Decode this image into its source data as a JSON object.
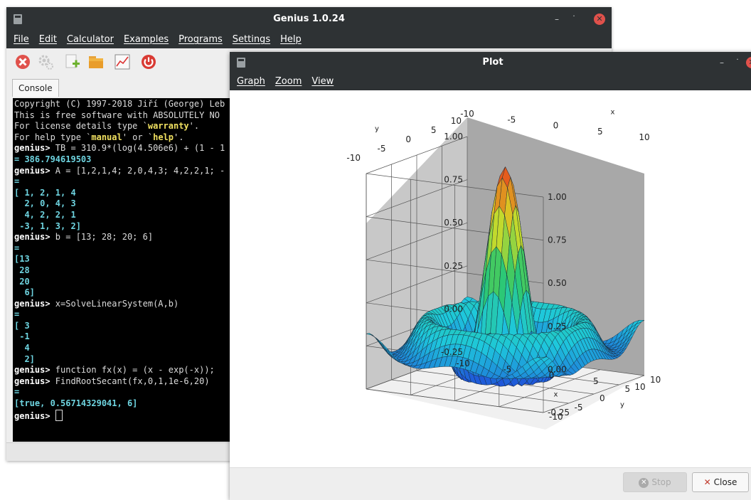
{
  "main_window": {
    "title": "Genius 1.0.24",
    "menu": [
      "File",
      "Edit",
      "Calculator",
      "Examples",
      "Programs",
      "Settings",
      "Help"
    ],
    "toolbar_icons": [
      "stop-icon",
      "gear-icon",
      "new-file-icon",
      "open-folder-icon",
      "plot-icon",
      "quit-icon"
    ],
    "tab": "Console",
    "console_lines": [
      [
        {
          "t": "Copyright (C) 1997-2018 Jiří (George) Leb",
          "c": ""
        }
      ],
      [
        {
          "t": "This is free software with ABSOLUTELY NO ",
          "c": ""
        }
      ],
      [
        {
          "t": "For license details type `",
          "c": ""
        },
        {
          "t": "warranty",
          "c": "cyellow"
        },
        {
          "t": "'.",
          "c": ""
        }
      ],
      [
        {
          "t": "For help type `",
          "c": ""
        },
        {
          "t": "manual",
          "c": "cyellow"
        },
        {
          "t": "' or `",
          "c": ""
        },
        {
          "t": "help",
          "c": "cyellow"
        },
        {
          "t": "'.",
          "c": ""
        }
      ],
      [
        {
          "t": "",
          "c": ""
        }
      ],
      [
        {
          "t": "genius>",
          "c": "cprompt"
        },
        {
          "t": " TB = 310.9*(log(4.506e6) + (1 - 1",
          "c": ""
        }
      ],
      [
        {
          "t": "= 386.794619503",
          "c": "cresult"
        }
      ],
      [
        {
          "t": "genius>",
          "c": "cprompt"
        },
        {
          "t": " A = [1,2,1,4; 2,0,4,3; 4,2,2,1; -",
          "c": ""
        }
      ],
      [
        {
          "t": "=",
          "c": "cresult"
        }
      ],
      [
        {
          "t": "[ 1, 2, 1, 4",
          "c": "cresult"
        }
      ],
      [
        {
          "t": "  2, 0, 4, 3",
          "c": "cresult"
        }
      ],
      [
        {
          "t": "  4, 2, 2, 1",
          "c": "cresult"
        }
      ],
      [
        {
          "t": " -3, 1, 3, 2]",
          "c": "cresult"
        }
      ],
      [
        {
          "t": "genius>",
          "c": "cprompt"
        },
        {
          "t": " b = [13; 28; 20; 6]",
          "c": ""
        }
      ],
      [
        {
          "t": "=",
          "c": "cresult"
        }
      ],
      [
        {
          "t": "[13",
          "c": "cresult"
        }
      ],
      [
        {
          "t": " 28",
          "c": "cresult"
        }
      ],
      [
        {
          "t": " 20",
          "c": "cresult"
        }
      ],
      [
        {
          "t": "  6]",
          "c": "cresult"
        }
      ],
      [
        {
          "t": "genius>",
          "c": "cprompt"
        },
        {
          "t": " x=SolveLinearSystem(A,b)",
          "c": ""
        }
      ],
      [
        {
          "t": "=",
          "c": "cresult"
        }
      ],
      [
        {
          "t": "[ 3",
          "c": "cresult"
        }
      ],
      [
        {
          "t": " -1",
          "c": "cresult"
        }
      ],
      [
        {
          "t": "  4",
          "c": "cresult"
        }
      ],
      [
        {
          "t": "  2]",
          "c": "cresult"
        }
      ],
      [
        {
          "t": "genius>",
          "c": "cprompt"
        },
        {
          "t": " function fx(x) = (x - exp(-x));",
          "c": ""
        }
      ],
      [
        {
          "t": "genius>",
          "c": "cprompt"
        },
        {
          "t": " FindRootSecant(fx,0,1,1e-6,20)",
          "c": ""
        }
      ],
      [
        {
          "t": "=",
          "c": "cresult"
        }
      ],
      [
        {
          "t": "[true, 0.56714329041, 6]",
          "c": "cresult"
        }
      ],
      [
        {
          "t": "genius>",
          "c": "cprompt"
        },
        {
          "t": " ",
          "c": ""
        }
      ]
    ]
  },
  "plot_window": {
    "title": "Plot",
    "menu": [
      "Graph",
      "Zoom",
      "View"
    ],
    "axis_name_x": "x",
    "axis_name_y": "y",
    "buttons": {
      "stop": "Stop",
      "close": "Close"
    }
  },
  "chart_data": {
    "type": "surface",
    "x_range": [
      -10,
      10
    ],
    "y_range": [
      -10,
      10
    ],
    "z_range": [
      -0.25,
      1.0
    ],
    "z_ticks": [
      "1.00",
      "0.75",
      "0.50",
      "0.25",
      "0.00",
      "-0.25"
    ],
    "x_ticks": [
      "-10",
      "-5",
      "0",
      "5",
      "10"
    ],
    "y_ticks": [
      "10",
      "5",
      "0",
      "-5",
      "-10"
    ],
    "xlabel": "x",
    "ylabel": "y",
    "colormap": [
      "#1f3fd8",
      "#1ec8dc",
      "#2ec86a",
      "#d8dc24",
      "#e8401c"
    ],
    "peak_value": 1.0,
    "grid": true
  }
}
